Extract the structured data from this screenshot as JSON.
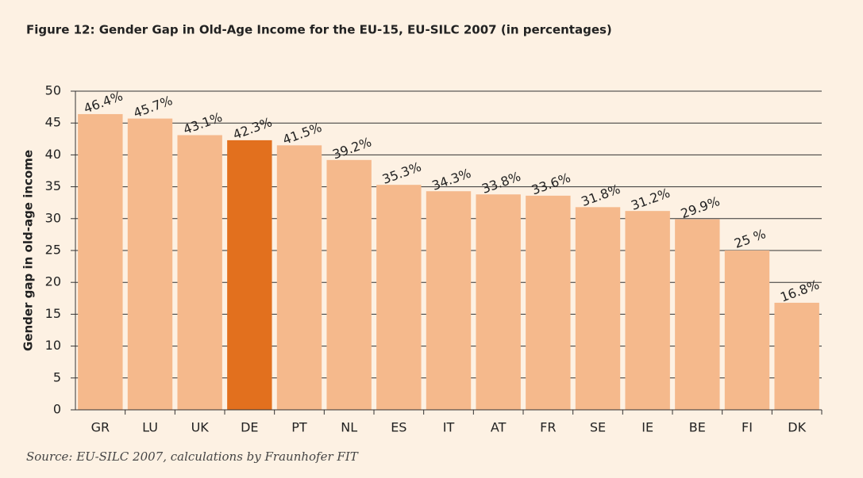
{
  "chart_data": {
    "type": "bar",
    "title": "Figure 12:  Gender Gap in Old-Age Income for the EU-15, EU-SILC 2007 (in percentages)",
    "y_label": "Gender gap in old-age income",
    "source": "Source: EU-SILC 2007, calculations by Fraunhofer FIT",
    "categories": [
      "GR",
      "LU",
      "UK",
      "DE",
      "PT",
      "NL",
      "ES",
      "IT",
      "AT",
      "FR",
      "SE",
      "IE",
      "BE",
      "FI",
      "DK"
    ],
    "values": [
      46.4,
      45.7,
      43.1,
      42.3,
      41.5,
      39.2,
      35.3,
      34.3,
      33.8,
      33.6,
      31.8,
      31.2,
      29.9,
      25,
      16.8
    ],
    "value_labels": [
      "46.4%",
      "45.7%",
      "43.1%",
      "42.3%",
      "41.5%",
      "39.2%",
      "35.3%",
      "34.3%",
      "33.8%",
      "33.6%",
      "31.8%",
      "31.2%",
      "29.9%",
      "25 %",
      "16.8%"
    ],
    "colors": [
      "#f5b98c",
      "#f5b98c",
      "#f5b98c",
      "#e2701e",
      "#f5b98c",
      "#f5b98c",
      "#f5b98c",
      "#f5b98c",
      "#f5b98c",
      "#f5b98c",
      "#f5b98c",
      "#f5b98c",
      "#f5b98c",
      "#f5b98c",
      "#f5b98c"
    ],
    "ylim": [
      0,
      50
    ],
    "yticks": [
      0,
      5,
      10,
      15,
      20,
      25,
      30,
      35,
      40,
      45,
      50
    ],
    "grid": true
  }
}
